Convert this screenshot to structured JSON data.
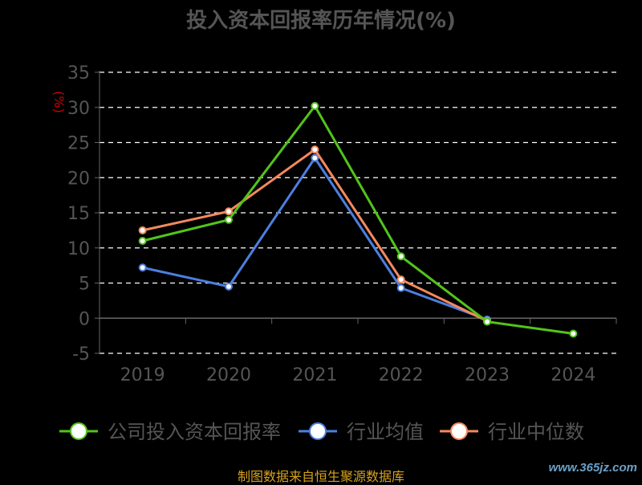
{
  "chart_data": {
    "type": "line",
    "title": "投入资本回报率历年情况(%)",
    "ylabel": "(%)",
    "xlabel": "",
    "categories": [
      "2019",
      "2020",
      "2021",
      "2022",
      "2023",
      "2024"
    ],
    "ylim": [
      -5,
      35
    ],
    "yticks": [
      35,
      30,
      25,
      20,
      15,
      10,
      5,
      0,
      -5
    ],
    "grid": true,
    "legend_position": "bottom",
    "series": [
      {
        "name": "公司投入资本回报率",
        "color": "#52c41a",
        "values": [
          11.0,
          14.0,
          30.2,
          8.8,
          -0.5,
          -2.2
        ]
      },
      {
        "name": "行业均值",
        "color": "#4c7fe0",
        "values": [
          7.2,
          4.5,
          22.8,
          4.3,
          -0.2,
          null
        ]
      },
      {
        "name": "行业中位数",
        "color": "#f4895f",
        "values": [
          12.5,
          15.2,
          24.0,
          5.5,
          -0.4,
          null
        ]
      }
    ]
  },
  "source_text": "制图数据来自恒生聚源数据库",
  "watermark": "www.365jz.com",
  "colors": {
    "background": "#000000",
    "axis": "#666666",
    "grid": "#ffffff",
    "tick_label": "#555555",
    "title": "#555555",
    "ylabel": "#cc0000"
  }
}
